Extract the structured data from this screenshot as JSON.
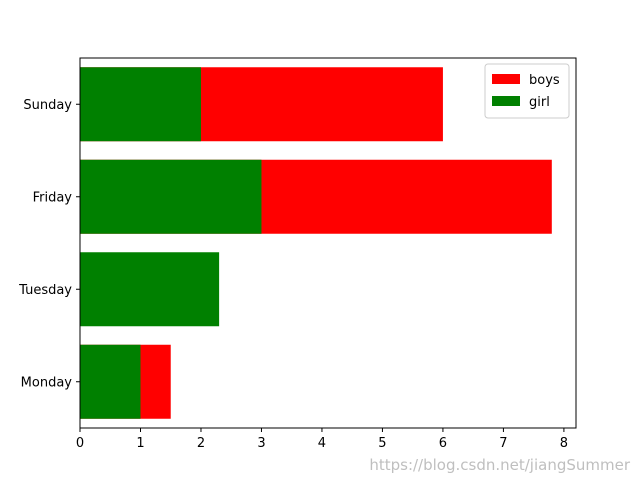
{
  "chart_data": {
    "type": "bar",
    "orientation": "horizontal",
    "stacked": false,
    "categories": [
      "Monday",
      "Tuesday",
      "Friday",
      "Sunday"
    ],
    "series": [
      {
        "name": "boys",
        "color": "#ff0000",
        "values": [
          1.5,
          0,
          7.8,
          6
        ]
      },
      {
        "name": "girl",
        "color": "#008000",
        "values": [
          1,
          2.3,
          3,
          2
        ]
      }
    ],
    "xlim": [
      0,
      8.2
    ],
    "xticks": [
      0,
      1,
      2,
      3,
      4,
      5,
      6,
      7,
      8
    ],
    "title": "",
    "xlabel": "",
    "ylabel": "",
    "grid": false,
    "legend": {
      "position": "top-right",
      "entries": [
        "boys",
        "girl"
      ]
    }
  },
  "watermark": "https://blog.csdn.net/jiangSummer"
}
